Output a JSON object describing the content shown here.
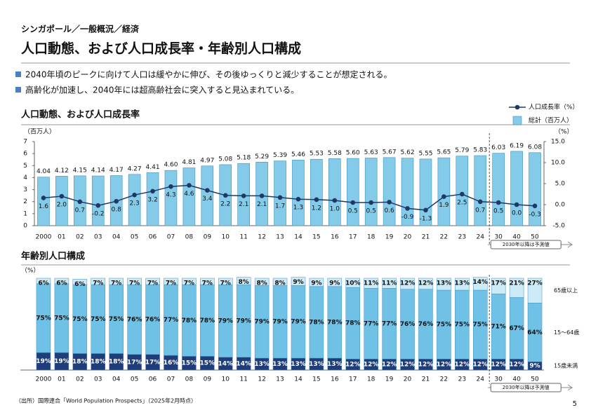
{
  "header": {
    "section": "シンガポール／一般概況／経済",
    "title": "人口動態、および人口成長率・年齢別人口構成"
  },
  "bullets": [
    "2040年頃のピークに向けて人口は緩やかに伸び、その後ゆっくりと減少することが想定される。",
    "高齢化が加速し、2040年には超高齢社会に突入すると見込まれている。"
  ],
  "source": "（出所）国際連合「World Population Prospects」（2025年2月時点）",
  "page_number": "5",
  "chart_data": [
    {
      "type": "combo",
      "title": "人口動態、および人口成長率",
      "ylabel": "（百万人）",
      "y2label": "（%）",
      "annotation": "2030年以降は予測値",
      "categories": [
        "2000",
        "01",
        "02",
        "03",
        "04",
        "05",
        "06",
        "07",
        "08",
        "09",
        "10",
        "11",
        "12",
        "13",
        "14",
        "15",
        "16",
        "17",
        "18",
        "19",
        "20",
        "21",
        "22",
        "23",
        "24",
        "30",
        "40",
        "50"
      ],
      "ylim": [
        0,
        7
      ],
      "yticks": [
        0,
        1,
        2,
        3,
        4,
        5,
        6,
        7
      ],
      "y2lim": [
        -5,
        15
      ],
      "y2ticks": [
        {
          "value": -5,
          "label": "-5.0"
        },
        {
          "value": 0,
          "label": "0.0"
        },
        {
          "value": 5,
          "label": "5.0"
        },
        {
          "value": 10,
          "label": "10.0"
        },
        {
          "value": 15,
          "label": "15.0"
        }
      ],
      "series": [
        {
          "name": "人口成長率（%）",
          "type": "line",
          "axis": "y2",
          "color": "#1f3864",
          "values": [
            1.6,
            2.0,
            0.7,
            -0.2,
            0.8,
            2.3,
            3.2,
            4.3,
            4.6,
            3.4,
            2.2,
            2.1,
            2.1,
            1.7,
            1.3,
            1.2,
            1.0,
            0.5,
            0.5,
            0.6,
            -0.9,
            -1.3,
            1.9,
            2.5,
            0.7,
            0.5,
            0.0,
            -0.3
          ],
          "value_labels": [
            "1.6",
            "2.0",
            "0.7",
            "-0.2",
            "0.8",
            "2.3",
            "3.2",
            "4.3",
            "4.6",
            "3.4",
            "2.2",
            "2.1",
            "2.1",
            "1.7",
            "1.3",
            "1.2",
            "1.0",
            "0.5",
            "0.5",
            "0.6",
            "-0.9",
            "-1.3",
            "1.9",
            "2.5",
            "0.7",
            "0.5",
            "0.0",
            "-0.3"
          ]
        },
        {
          "name": "総計（百万人）",
          "type": "bar",
          "color": "#84cbe9",
          "values": [
            4.04,
            4.12,
            4.15,
            4.14,
            4.17,
            4.27,
            4.41,
            4.6,
            4.81,
            4.97,
            5.08,
            5.18,
            5.29,
            5.39,
            5.46,
            5.53,
            5.58,
            5.6,
            5.63,
            5.67,
            5.62,
            5.55,
            5.65,
            5.79,
            5.83,
            6.03,
            6.19,
            6.08
          ],
          "value_labels": [
            "4.04",
            "4.12",
            "4.15",
            "4.14",
            "4.17",
            "4.27",
            "4.41",
            "4.60",
            "4.81",
            "4.97",
            "5.08",
            "5.18",
            "5.29",
            "5.39",
            "5.46",
            "5.53",
            "5.58",
            "5.60",
            "5.63",
            "5.67",
            "5.62",
            "5.55",
            "5.65",
            "5.79",
            "5.83",
            "6.03",
            "6.19",
            "6.08"
          ]
        }
      ]
    },
    {
      "type": "stacked_bar",
      "title": "年齢別人口構成",
      "ylabel": "（%）",
      "annotation": "2030年以降は予測値",
      "categories": [
        "2000",
        "01",
        "02",
        "03",
        "04",
        "05",
        "06",
        "07",
        "08",
        "09",
        "10",
        "11",
        "12",
        "13",
        "14",
        "15",
        "16",
        "17",
        "18",
        "19",
        "20",
        "21",
        "22",
        "23",
        "24",
        "30",
        "40",
        "50"
      ],
      "ylim": [
        0,
        100
      ],
      "series": [
        {
          "name": "15歳未満",
          "color": "#1f3d7a",
          "values": [
            19,
            19,
            18,
            18,
            18,
            17,
            17,
            16,
            15,
            15,
            14,
            14,
            13,
            13,
            13,
            13,
            13,
            12,
            12,
            12,
            12,
            12,
            12,
            12,
            12,
            12,
            12,
            9
          ],
          "value_labels": [
            "19%",
            "19%",
            "18%",
            "18%",
            "18%",
            "17%",
            "17%",
            "16%",
            "15%",
            "15%",
            "14%",
            "14%",
            "13%",
            "13%",
            "13%",
            "13%",
            "13%",
            "12%",
            "12%",
            "12%",
            "12%",
            "12%",
            "12%",
            "12%",
            "12%",
            "12%",
            "12%",
            "9%"
          ]
        },
        {
          "name": "15～64歳",
          "color": "#6fc2e6",
          "values": [
            75,
            75,
            75,
            75,
            75,
            76,
            76,
            77,
            78,
            78,
            79,
            79,
            79,
            79,
            79,
            78,
            78,
            78,
            77,
            77,
            76,
            76,
            75,
            75,
            75,
            71,
            67,
            64
          ],
          "value_labels": [
            "75%",
            "75%",
            "75%",
            "75%",
            "75%",
            "76%",
            "76%",
            "77%",
            "78%",
            "78%",
            "79%",
            "79%",
            "79%",
            "79%",
            "79%",
            "78%",
            "78%",
            "78%",
            "77%",
            "77%",
            "76%",
            "76%",
            "75%",
            "75%",
            "75%",
            "71%",
            "67%",
            "64%"
          ]
        },
        {
          "name": "65歳以上",
          "color": "#cdeaf7",
          "values": [
            6,
            6,
            6,
            7,
            7,
            7,
            7,
            7,
            7,
            7,
            7,
            8,
            8,
            8,
            9,
            9,
            9,
            10,
            11,
            11,
            12,
            12,
            13,
            13,
            14,
            17,
            21,
            27
          ],
          "value_labels": [
            "6%",
            "6%",
            "6%",
            "7%",
            "7%",
            "7%",
            "7%",
            "7%",
            "7%",
            "7%",
            "7%",
            "8%",
            "8%",
            "8%",
            "9%",
            "9%",
            "9%",
            "10%",
            "11%",
            "11%",
            "12%",
            "12%",
            "13%",
            "13%",
            "14%",
            "17%",
            "21%",
            "27%"
          ]
        }
      ]
    }
  ]
}
